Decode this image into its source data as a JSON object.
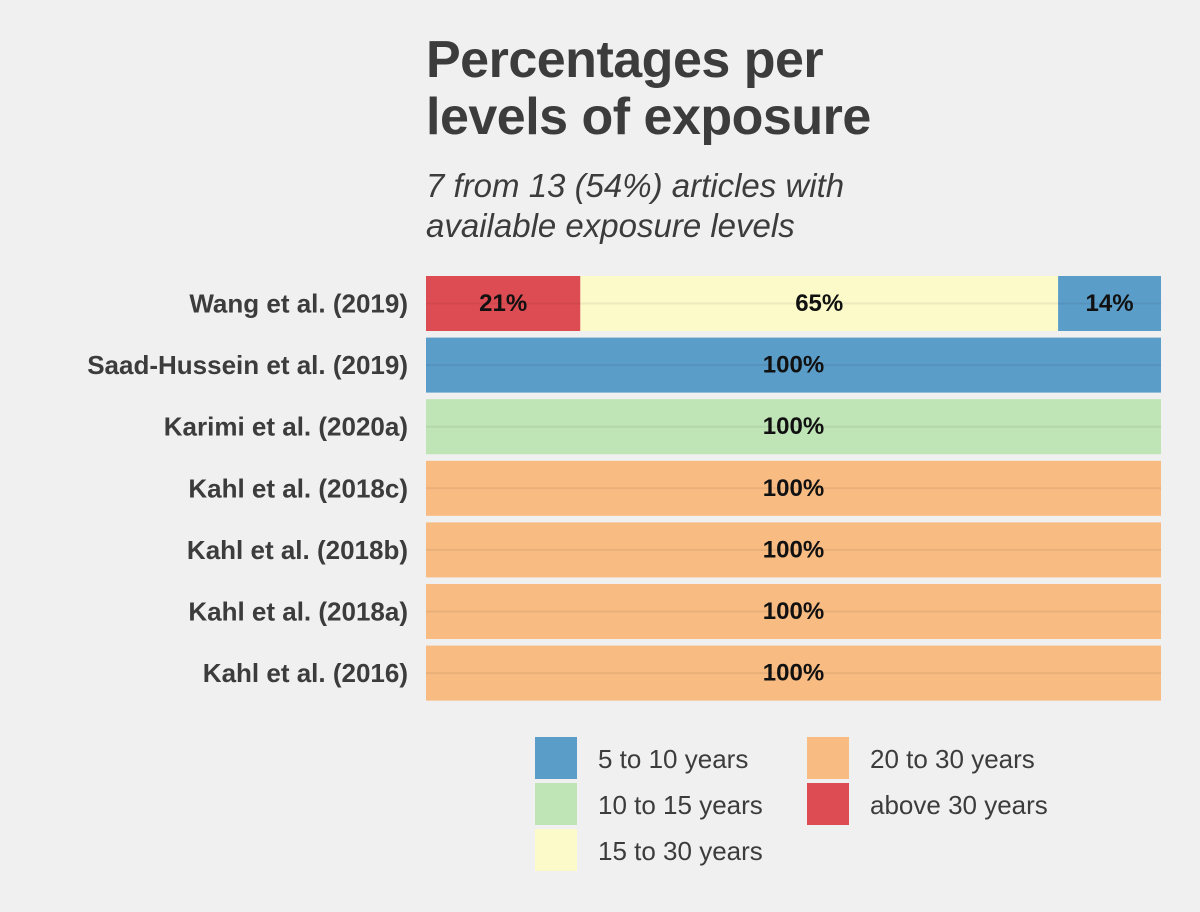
{
  "chart_data": {
    "type": "bar",
    "orientation": "horizontal",
    "stacked": true,
    "title_line1": "Percentages per",
    "title_line2": "levels of exposure",
    "subtitle_line1": "7 from 13 (54%) articles with",
    "subtitle_line2": "available exposure levels",
    "xlabel": "",
    "ylabel": "",
    "xlim": [
      0,
      100
    ],
    "grid": false,
    "legend_position": "bottom",
    "categories": [
      "Wang et al. (2019)",
      "Saad-Hussein et al. (2019)",
      "Karimi et al. (2020a)",
      "Kahl et al. (2018c)",
      "Kahl et al. (2018b)",
      "Kahl et al. (2018a)",
      "Kahl et al. (2016)"
    ],
    "series": [
      {
        "name": "above 30 years",
        "color": "#dd4c52",
        "values": [
          21,
          0,
          0,
          0,
          0,
          0,
          0
        ],
        "labels": [
          "21%",
          "",
          "",
          "",
          "",
          "",
          ""
        ]
      },
      {
        "name": "20 to 30 years",
        "color": "#f8bb82",
        "values": [
          0,
          0,
          0,
          100,
          100,
          100,
          100
        ],
        "labels": [
          "",
          "",
          "",
          "100%",
          "100%",
          "100%",
          "100%"
        ]
      },
      {
        "name": "15 to 30 years",
        "color": "#fcfac9",
        "values": [
          65,
          0,
          0,
          0,
          0,
          0,
          0
        ],
        "labels": [
          "65%",
          "",
          "",
          "",
          "",
          "",
          ""
        ]
      },
      {
        "name": "10 to 15 years",
        "color": "#bfe4b6",
        "values": [
          0,
          0,
          100,
          0,
          0,
          0,
          0
        ],
        "labels": [
          "",
          "",
          "100%",
          "",
          "",
          "",
          ""
        ]
      },
      {
        "name": "5 to 10 years",
        "color": "#5b9dc9",
        "values": [
          14,
          100,
          0,
          0,
          0,
          0,
          0
        ],
        "labels": [
          "14%",
          "100%",
          "",
          "",
          "",
          "",
          ""
        ]
      }
    ],
    "legend_order": [
      "5 to 10 years",
      "10 to 15 years",
      "15 to 30 years",
      "20 to 30 years",
      "above 30 years"
    ]
  }
}
